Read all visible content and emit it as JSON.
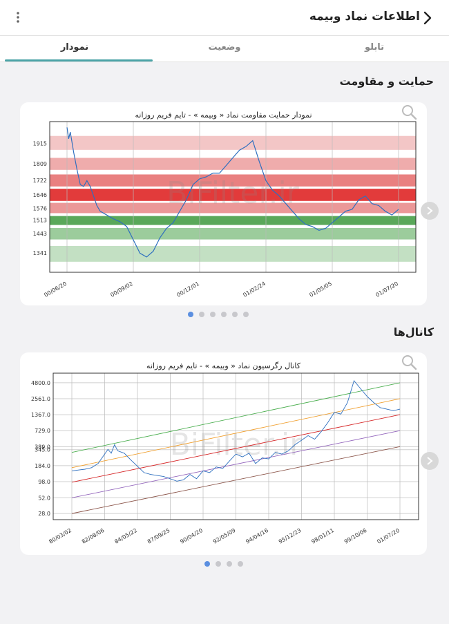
{
  "header": {
    "title": "اطلاعات نماد وبیمه"
  },
  "tabs": [
    {
      "label": "تابلو",
      "active": false
    },
    {
      "label": "وضعیت",
      "active": false
    },
    {
      "label": "نمودار",
      "active": true
    }
  ],
  "colors": {
    "accent": "#4aa3a6",
    "dot_active": "#5b8fe0",
    "series": "#2e6fbf"
  },
  "sections": {
    "support": {
      "title": "حمایت و مقاومت",
      "pagination_count": 6,
      "active_index": 0
    },
    "channels": {
      "title": "کانال‌ها",
      "pagination_count": 4,
      "active_index": 0
    }
  },
  "watermark": "BiFilter.ir",
  "chart_data": [
    {
      "type": "line",
      "title": "نمودار حمایت مقاومت نماد « وبیمه » - تایم فریم روزانه",
      "x_ticks": [
        "00/06/20",
        "00/09/02",
        "00/12/01",
        "01/02/24",
        "01/05/05",
        "01/07/20"
      ],
      "y_ticks": [
        1915,
        1809,
        1722,
        1646,
        1576,
        1513,
        1443,
        1341
      ],
      "ylim": [
        1240,
        2030
      ],
      "bands": [
        {
          "from": 1882,
          "to": 1955,
          "color": "#f3c6c6"
        },
        {
          "from": 1777,
          "to": 1840,
          "color": "#efacac"
        },
        {
          "from": 1690,
          "to": 1753,
          "color": "#e98080"
        },
        {
          "from": 1614,
          "to": 1678,
          "color": "#e23b3b"
        },
        {
          "from": 1550,
          "to": 1604,
          "color": "#eb9898"
        },
        {
          "from": 1488,
          "to": 1535,
          "color": "#5aa85a"
        },
        {
          "from": 1412,
          "to": 1472,
          "color": "#9ccc9c"
        },
        {
          "from": 1295,
          "to": 1378,
          "color": "#c3e0c3"
        }
      ],
      "x": [
        0,
        0.5,
        1,
        2,
        3,
        4,
        5,
        6,
        7,
        8,
        9,
        10,
        12,
        14,
        16,
        18,
        20,
        22,
        24,
        26,
        28,
        30,
        32,
        34,
        36,
        38,
        40,
        42,
        44,
        46,
        48,
        50,
        52,
        54,
        56,
        58,
        60,
        62,
        64,
        66,
        68,
        70,
        72,
        74,
        76,
        78,
        80,
        82,
        84,
        86,
        88,
        90,
        92,
        94,
        96,
        98,
        100
      ],
      "y": [
        2000,
        1940,
        1975,
        1870,
        1780,
        1700,
        1690,
        1720,
        1690,
        1640,
        1590,
        1560,
        1540,
        1520,
        1505,
        1480,
        1410,
        1340,
        1320,
        1350,
        1420,
        1470,
        1500,
        1560,
        1620,
        1700,
        1730,
        1740,
        1760,
        1760,
        1800,
        1840,
        1880,
        1900,
        1930,
        1820,
        1720,
        1670,
        1640,
        1600,
        1560,
        1520,
        1490,
        1480,
        1460,
        1470,
        1500,
        1530,
        1560,
        1570,
        1620,
        1640,
        1600,
        1590,
        1560,
        1540,
        1570
      ],
      "series": [
        {
          "name": "",
          "color": "#2e6fbf"
        }
      ]
    },
    {
      "type": "line",
      "title": "کانال رگرسیون نماد « وبیمه » - تایم فریم روزانه",
      "x_ticks": [
        "80/03/02",
        "82/08/06",
        "84/05/22",
        "87/09/25",
        "90/04/20",
        "92/05/09",
        "94/04/16",
        "95/12/23",
        "98/01/11",
        "99/10/06",
        "01/07/20"
      ],
      "y_ticks": [
        "4800.0",
        "2561.0",
        "1367.0",
        "729.0",
        "389.0",
        "345.0",
        "184.0",
        "98.0",
        "52.0",
        "28.0"
      ],
      "y_scale": "log",
      "ylim": [
        22,
        7000
      ],
      "channel_lines": [
        {
          "color": "#4caf50",
          "from": 310,
          "to": 4800
        },
        {
          "color": "#f0a030",
          "from": 170,
          "to": 2561
        },
        {
          "color": "#d62728",
          "from": 96,
          "to": 1367
        },
        {
          "color": "#9467bd",
          "from": 52,
          "to": 729
        },
        {
          "color": "#8c564b",
          "from": 28,
          "to": 389
        }
      ],
      "x": [
        0,
        2,
        4,
        6,
        8,
        10,
        11,
        12,
        13,
        14,
        16,
        18,
        20,
        22,
        24,
        26,
        28,
        30,
        32,
        34,
        36,
        38,
        40,
        42,
        44,
        46,
        48,
        50,
        52,
        54,
        56,
        58,
        60,
        62,
        64,
        66,
        68,
        70,
        72,
        74,
        76,
        78,
        80,
        82,
        84,
        86,
        88,
        90,
        92,
        94,
        96,
        98,
        100
      ],
      "y": [
        150,
        155,
        160,
        170,
        200,
        290,
        350,
        300,
        420,
        330,
        300,
        230,
        180,
        140,
        130,
        125,
        120,
        110,
        100,
        105,
        130,
        110,
        150,
        140,
        175,
        165,
        220,
        290,
        260,
        300,
        200,
        250,
        240,
        310,
        290,
        330,
        420,
        500,
        600,
        520,
        700,
        1000,
        1500,
        1400,
        2200,
        5200,
        3800,
        2800,
        2200,
        1800,
        1700,
        1600,
        1700
      ],
      "series": [
        {
          "name": "",
          "color": "#2e6fbf"
        }
      ]
    }
  ]
}
